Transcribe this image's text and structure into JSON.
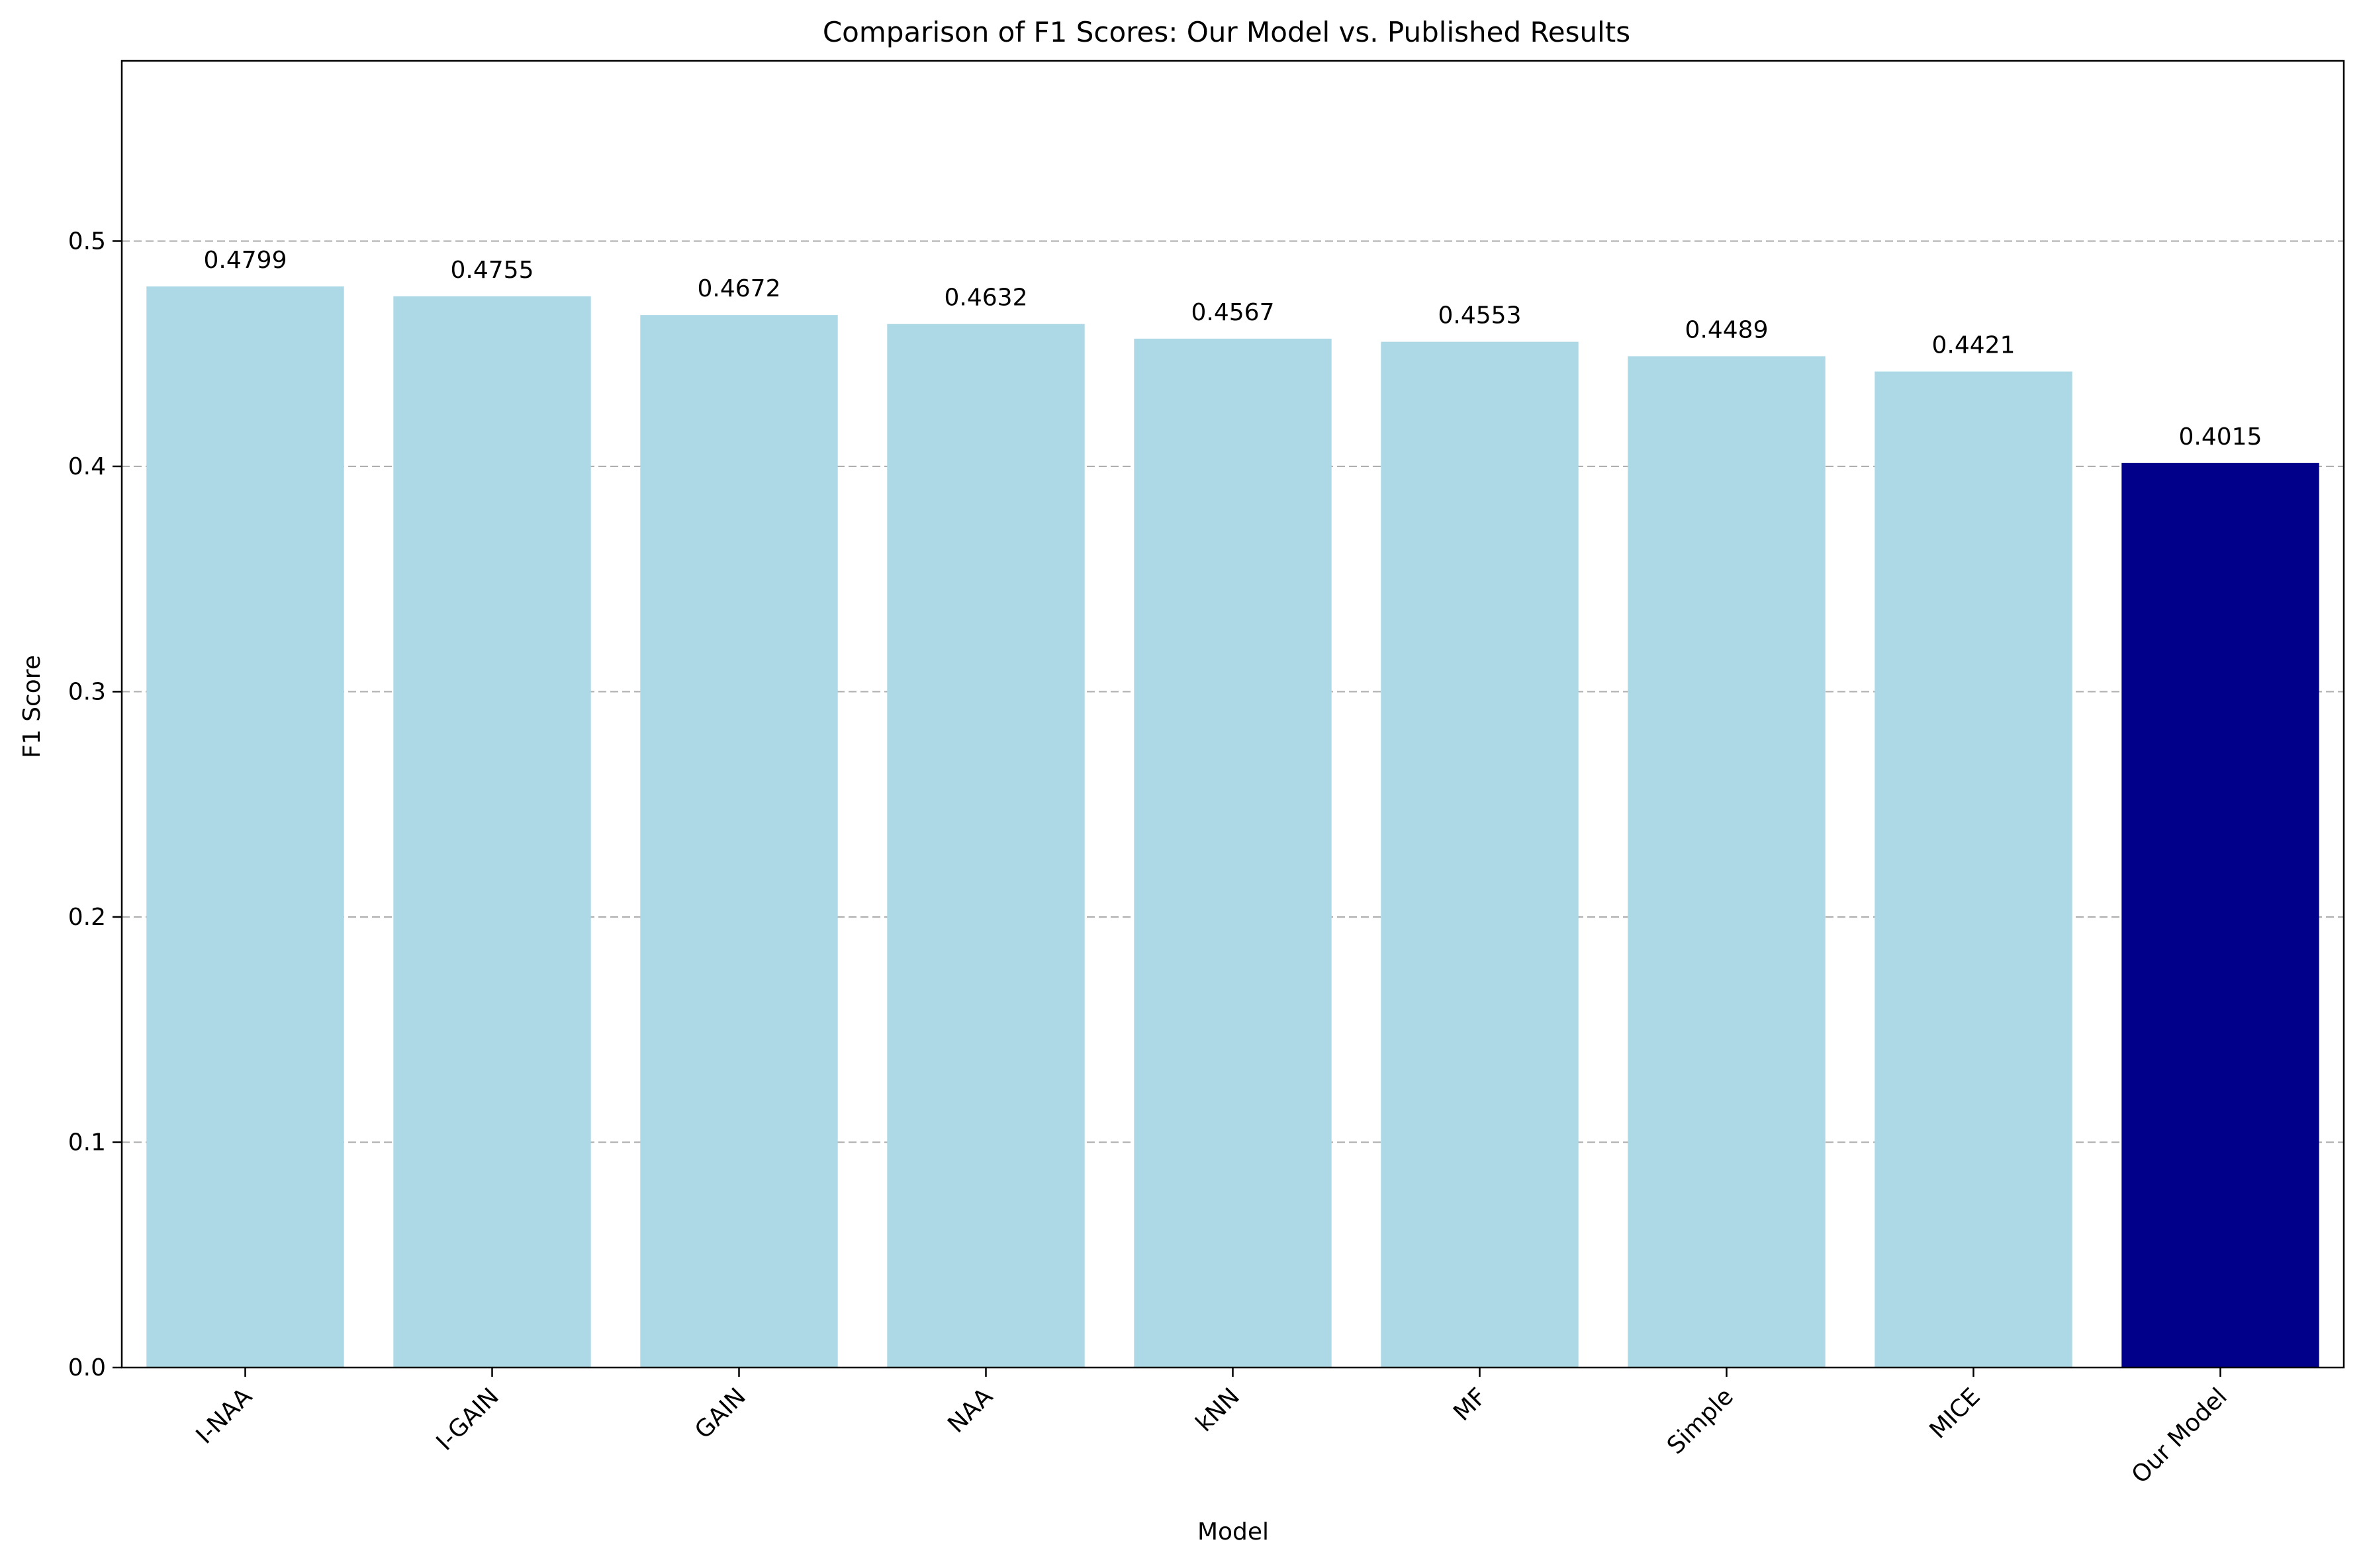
{
  "chart_data": {
    "type": "bar",
    "title": "Comparison of F1 Scores: Our Model vs. Published Results",
    "xlabel": "Model",
    "ylabel": "F1 Score",
    "categories": [
      "I-NAA",
      "I-GAIN",
      "GAIN",
      "NAA",
      "kNN",
      "MF",
      "Simple",
      "MICE",
      "Our Model"
    ],
    "values": [
      0.4799,
      0.4755,
      0.4672,
      0.4632,
      0.4567,
      0.4553,
      0.4489,
      0.4421,
      0.4015
    ],
    "value_labels": [
      "0.4799",
      "0.4755",
      "0.4672",
      "0.4632",
      "0.4567",
      "0.4553",
      "0.4489",
      "0.4421",
      "0.4015"
    ],
    "highlight_category": "Our Model",
    "colors": {
      "default_bar": "#add8e6",
      "highlight_bar": "#00008b",
      "grid": "#b0b0b0",
      "axis": "#000000"
    },
    "ylim": [
      0,
      0.58
    ],
    "yticks": [
      0.0,
      0.1,
      0.2,
      0.3,
      0.4,
      0.5
    ],
    "ytick_labels": [
      "0.0",
      "0.1",
      "0.2",
      "0.3",
      "0.4",
      "0.5"
    ],
    "grid": "y-dashed",
    "legend": "none"
  }
}
